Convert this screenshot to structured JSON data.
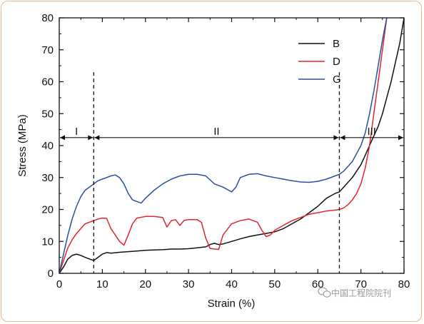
{
  "chart_data": {
    "type": "line",
    "title": "",
    "xlabel": "Strain (%)",
    "ylabel": "Stress (MPa)",
    "xlim": [
      0,
      80
    ],
    "ylim": [
      0,
      80
    ],
    "xticks": [
      0,
      10,
      20,
      30,
      40,
      50,
      60,
      70,
      80
    ],
    "yticks": [
      0,
      10,
      20,
      30,
      40,
      50,
      60,
      70,
      80
    ],
    "grid": false,
    "legend_position": "top-right",
    "series": [
      {
        "name": "B",
        "color": "#111111",
        "x": [
          0,
          1,
          2,
          3,
          4,
          5,
          6,
          7,
          8,
          9,
          10,
          11,
          12,
          14,
          16,
          18,
          20,
          22,
          24,
          26,
          28,
          30,
          32,
          34,
          35,
          36,
          37,
          38,
          40,
          42,
          44,
          46,
          48,
          50,
          52,
          54,
          56,
          58,
          60,
          62,
          64,
          65,
          66,
          67,
          68,
          69,
          70,
          71,
          72,
          73,
          74,
          75,
          76,
          77,
          78,
          79,
          80
        ],
        "y": [
          0,
          2,
          4.5,
          5.6,
          6,
          5.6,
          5,
          4.5,
          4,
          5,
          6,
          6.5,
          6.3,
          6.6,
          6.8,
          7,
          7.2,
          7.3,
          7.4,
          7.6,
          7.6,
          7.7,
          8,
          8.3,
          9,
          9.4,
          9,
          9.2,
          10,
          10.8,
          11.5,
          12,
          12.5,
          13,
          14,
          15.5,
          17,
          19,
          21,
          23.5,
          25,
          25.5,
          27,
          28.5,
          30,
          32,
          34,
          37,
          40,
          43,
          46,
          50,
          55,
          60,
          66,
          72,
          80
        ]
      },
      {
        "name": "D",
        "color": "#e0262e",
        "x": [
          0,
          1,
          2,
          3,
          4,
          5,
          6,
          7,
          8,
          9,
          10,
          11,
          12,
          13,
          14,
          15,
          16,
          17,
          18,
          20,
          22,
          24,
          25,
          26,
          27,
          28,
          29,
          30,
          32,
          33,
          34,
          35,
          36,
          37,
          38,
          40,
          42,
          44,
          46,
          47,
          48,
          49,
          50,
          52,
          54,
          56,
          58,
          60,
          62,
          64,
          65,
          66,
          67,
          68,
          69,
          70,
          71,
          72,
          73,
          74,
          75,
          76
        ],
        "y": [
          0,
          4,
          8,
          10.5,
          12.5,
          14,
          15.5,
          16,
          16.5,
          17,
          17.3,
          17.2,
          14,
          12,
          10,
          8.8,
          12,
          15.5,
          17.3,
          17.8,
          17.8,
          17.5,
          14.5,
          16.5,
          16.8,
          15,
          16.6,
          16.8,
          16.8,
          16,
          11,
          7.8,
          7.6,
          7.5,
          12,
          15.5,
          16.5,
          17,
          16,
          13.5,
          11.5,
          12,
          13.5,
          15,
          16.5,
          17.5,
          18.5,
          19,
          19.5,
          19.8,
          20,
          20.5,
          21.5,
          23,
          25,
          28,
          33,
          40,
          50,
          60,
          70,
          80
        ]
      },
      {
        "name": "G",
        "color": "#2b4fa0",
        "x": [
          0,
          1,
          2,
          3,
          4,
          5,
          6,
          7,
          8,
          9,
          10,
          11,
          12,
          13,
          14,
          15,
          16,
          17,
          18,
          19,
          20,
          22,
          24,
          26,
          28,
          30,
          32,
          34,
          36,
          38,
          40,
          41,
          42,
          44,
          46,
          48,
          50,
          52,
          54,
          56,
          58,
          60,
          62,
          64,
          65,
          66,
          67,
          68,
          69,
          70,
          71,
          72,
          73,
          74,
          75,
          76
        ],
        "y": [
          0,
          6,
          12,
          17,
          21,
          24,
          26,
          27,
          28,
          29,
          29.5,
          30,
          30.5,
          30.8,
          30,
          28,
          25,
          23,
          22.5,
          22,
          23.5,
          26,
          28,
          29.5,
          30.5,
          31,
          31,
          30.5,
          28,
          27,
          25.5,
          27,
          30,
          31,
          31.2,
          30.5,
          30,
          29.5,
          29,
          28.6,
          28.5,
          28.8,
          29.5,
          30.5,
          31,
          32,
          33.5,
          35,
          37.5,
          40,
          44,
          50,
          57,
          65,
          73,
          80
        ]
      }
    ],
    "annotations": {
      "dashed_lines_x": [
        8,
        65
      ],
      "arrow_y": 42.5,
      "regions": [
        {
          "label": "I",
          "from": 0,
          "to": 8
        },
        {
          "label": "II",
          "from": 8,
          "to": 65
        },
        {
          "label": "III",
          "from": 65,
          "to": 80
        }
      ]
    }
  },
  "watermark": {
    "icon": "wechat-icon",
    "text": "中国工程院院刊"
  }
}
